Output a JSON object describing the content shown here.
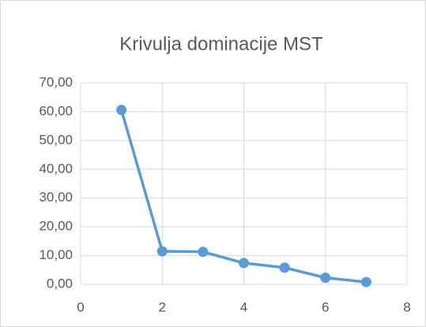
{
  "chart_data": {
    "type": "line",
    "title": "Krivulja dominacije MST",
    "x": [
      1,
      2,
      3,
      4,
      5,
      6,
      7
    ],
    "series": [
      {
        "name": "MST",
        "color": "#5b9bd5",
        "values": [
          60.6,
          11.5,
          11.3,
          7.4,
          5.8,
          2.3,
          0.8
        ]
      }
    ],
    "xlim": [
      0,
      8
    ],
    "xticks": [
      0,
      2,
      4,
      6,
      8
    ],
    "ylim": [
      0,
      70
    ],
    "yticks": [
      {
        "value": 0,
        "label": "0,00"
      },
      {
        "value": 10,
        "label": "10,00"
      },
      {
        "value": 20,
        "label": "20,00"
      },
      {
        "value": 30,
        "label": "30,00"
      },
      {
        "value": 40,
        "label": "40,00"
      },
      {
        "value": 50,
        "label": "50,00"
      },
      {
        "value": 60,
        "label": "60,00"
      },
      {
        "value": 70,
        "label": "70,00"
      }
    ],
    "grid": true
  }
}
